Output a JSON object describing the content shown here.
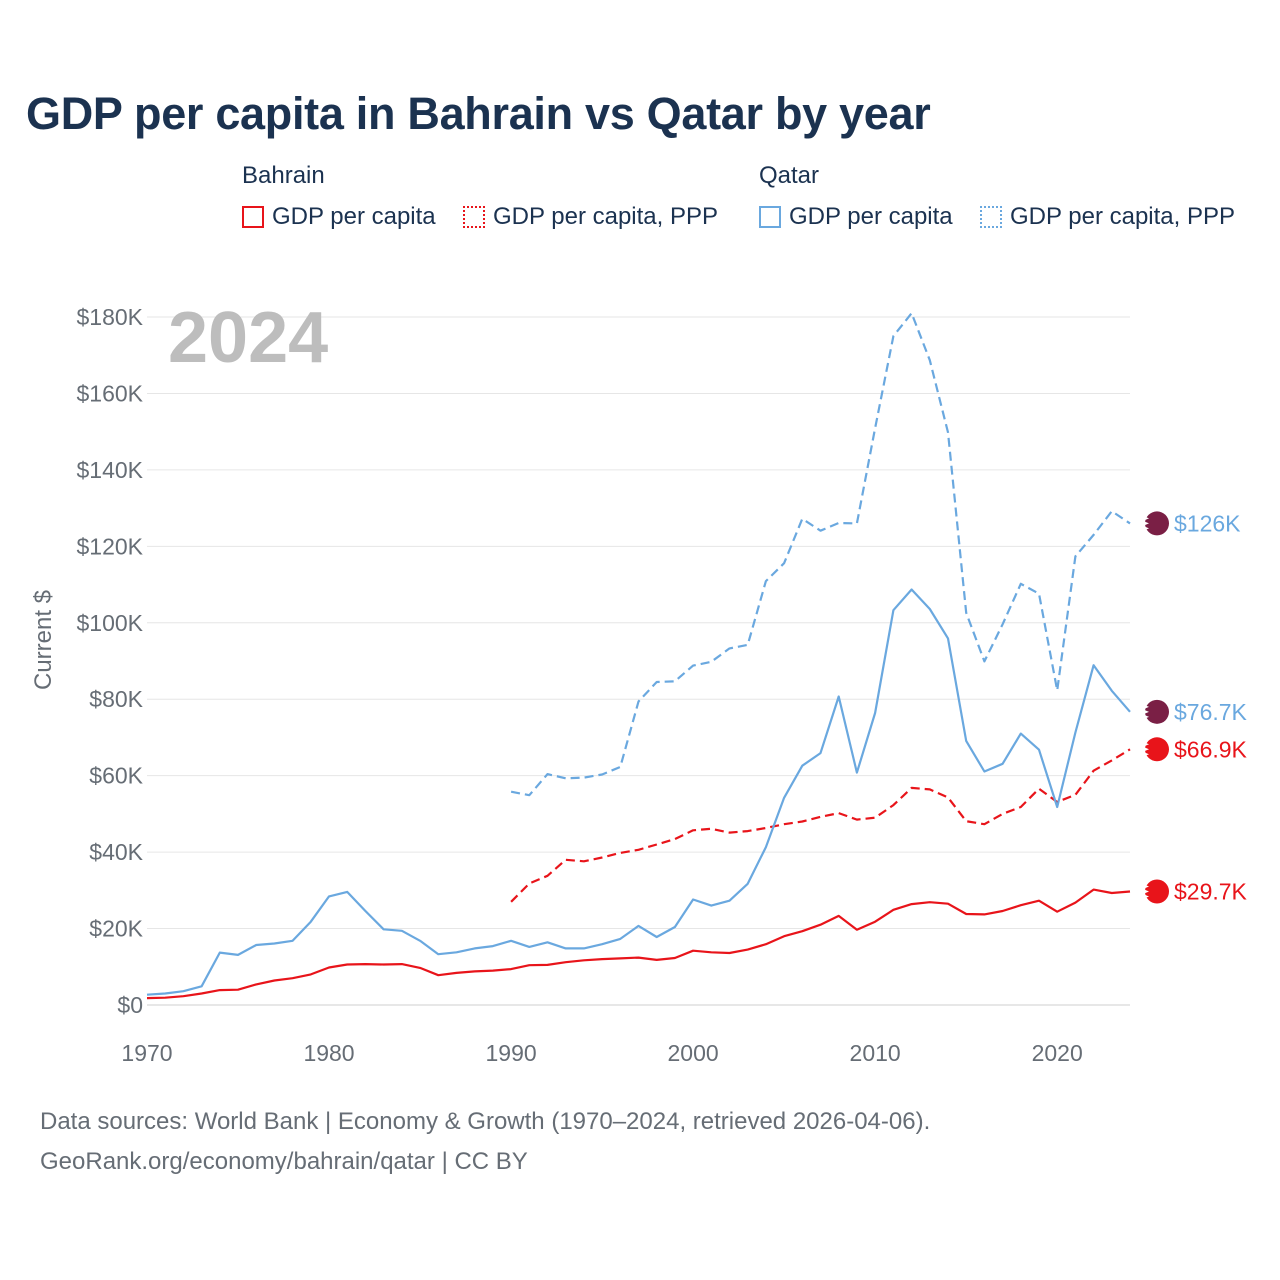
{
  "title": "GDP per capita in Bahrain vs Qatar by year",
  "legend": {
    "groups": [
      {
        "country": "Bahrain",
        "items": [
          "GDP per capita",
          "GDP per capita, PPP"
        ]
      },
      {
        "country": "Qatar",
        "items": [
          "GDP per capita",
          "GDP per capita, PPP"
        ]
      }
    ]
  },
  "source": {
    "line1": "Data sources: World Bank | Economy & Growth (1970–2024, retrieved 2026-04-06).",
    "line2": "GeoRank.org/economy/bahrain/qatar | CC BY"
  },
  "colors": {
    "bahrain": "#e8141a",
    "qatar": "#6aa8df",
    "qatar_flag": "#7a1f45",
    "bahrain_flag": "#e8141a",
    "grid": "#e6e6e6",
    "axis_text": "#666d75",
    "year_watermark": "#bdbdbd"
  },
  "chart_data": {
    "type": "line",
    "year_label": "2024",
    "ylabel": "Current $",
    "xlim": [
      1970,
      2024
    ],
    "ylim": [
      0,
      180000
    ],
    "x_ticks": [
      1970,
      1980,
      1990,
      2000,
      2010,
      2020
    ],
    "y_ticks": [
      {
        "value": 0,
        "label": "$0"
      },
      {
        "value": 20000,
        "label": "$20K"
      },
      {
        "value": 40000,
        "label": "$40K"
      },
      {
        "value": 60000,
        "label": "$60K"
      },
      {
        "value": 80000,
        "label": "$80K"
      },
      {
        "value": 100000,
        "label": "$100K"
      },
      {
        "value": 120000,
        "label": "$120K"
      },
      {
        "value": 140000,
        "label": "$140K"
      },
      {
        "value": 160000,
        "label": "$160K"
      },
      {
        "value": 180000,
        "label": "$180K"
      }
    ],
    "series": [
      {
        "name": "Bahrain GDP per capita",
        "country": "bahrain",
        "dash": false,
        "end_label": "$29.7K",
        "end_value": 29700,
        "x": [
          1970,
          1971,
          1972,
          1973,
          1974,
          1975,
          1976,
          1977,
          1978,
          1979,
          1980,
          1981,
          1982,
          1983,
          1984,
          1985,
          1986,
          1987,
          1988,
          1989,
          1990,
          1991,
          1992,
          1993,
          1994,
          1995,
          1996,
          1997,
          1998,
          1999,
          2000,
          2001,
          2002,
          2003,
          2004,
          2005,
          2006,
          2007,
          2008,
          2009,
          2010,
          2011,
          2012,
          2013,
          2014,
          2015,
          2016,
          2017,
          2018,
          2019,
          2020,
          2021,
          2022,
          2023,
          2024
        ],
        "values": [
          1800,
          1900,
          2300,
          3000,
          3900,
          4000,
          5400,
          6400,
          7000,
          8000,
          9800,
          10600,
          10700,
          10600,
          10700,
          9700,
          7800,
          8400,
          8800,
          9000,
          9400,
          10400,
          10500,
          11200,
          11700,
          12000,
          12200,
          12400,
          11800,
          12300,
          14200,
          13800,
          13600,
          14500,
          15900,
          18000,
          19300,
          21000,
          23300,
          19700,
          21800,
          24900,
          26400,
          26900,
          26500,
          23800,
          23700,
          24600,
          26100,
          27300,
          24400,
          26800,
          30200,
          29300,
          29700
        ]
      },
      {
        "name": "Bahrain GDP per capita, PPP",
        "country": "bahrain",
        "dash": true,
        "end_label": "$66.9K",
        "end_value": 66900,
        "x": [
          1990,
          1991,
          1992,
          1993,
          1994,
          1995,
          1996,
          1997,
          1998,
          1999,
          2000,
          2001,
          2002,
          2003,
          2004,
          2005,
          2006,
          2007,
          2008,
          2009,
          2010,
          2011,
          2012,
          2013,
          2014,
          2015,
          2016,
          2017,
          2018,
          2019,
          2020,
          2021,
          2022,
          2023,
          2024
        ],
        "values": [
          27000,
          31800,
          33800,
          38000,
          37600,
          38600,
          39800,
          40600,
          42000,
          43400,
          45700,
          46100,
          45100,
          45500,
          46300,
          47300,
          48000,
          49200,
          50200,
          48500,
          49000,
          52300,
          56800,
          56400,
          54300,
          48100,
          47300,
          50000,
          51800,
          56600,
          53100,
          55000,
          61300,
          64000,
          66900
        ]
      },
      {
        "name": "Qatar GDP per capita",
        "country": "qatar",
        "dash": false,
        "end_label": "$76.7K",
        "end_value": 76700,
        "x": [
          1970,
          1971,
          1972,
          1973,
          1974,
          1975,
          1976,
          1977,
          1978,
          1979,
          1980,
          1981,
          1982,
          1983,
          1984,
          1985,
          1986,
          1987,
          1988,
          1989,
          1990,
          1991,
          1992,
          1993,
          1994,
          1995,
          1996,
          1997,
          1998,
          1999,
          2000,
          2001,
          2002,
          2003,
          2004,
          2005,
          2006,
          2007,
          2008,
          2009,
          2010,
          2011,
          2012,
          2013,
          2014,
          2015,
          2016,
          2017,
          2018,
          2019,
          2020,
          2021,
          2022,
          2023,
          2024
        ],
        "values": [
          2700,
          3000,
          3600,
          4900,
          13700,
          13100,
          15700,
          16100,
          16800,
          21800,
          28400,
          29600,
          24600,
          19800,
          19400,
          16800,
          13300,
          13800,
          14800,
          15400,
          16800,
          15200,
          16400,
          14800,
          14800,
          15900,
          17300,
          20700,
          17800,
          20400,
          27600,
          26000,
          27300,
          31700,
          41300,
          54200,
          62600,
          65900,
          80700,
          60800,
          76400,
          103300,
          108700,
          103600,
          95900,
          69100,
          61100,
          63100,
          71000,
          66800,
          51800,
          71300,
          88900,
          82200,
          76700
        ]
      },
      {
        "name": "Qatar GDP per capita, PPP",
        "country": "qatar",
        "dash": true,
        "end_label": "$126K",
        "end_value": 126000,
        "x": [
          1990,
          1991,
          1992,
          1993,
          1994,
          1995,
          1996,
          1997,
          1998,
          1999,
          2000,
          2001,
          2002,
          2003,
          2004,
          2005,
          2006,
          2007,
          2008,
          2009,
          2010,
          2011,
          2012,
          2013,
          2014,
          2015,
          2016,
          2017,
          2018,
          2019,
          2020,
          2021,
          2022,
          2023,
          2024
        ],
        "values": [
          55800,
          54900,
          60400,
          59300,
          59500,
          60300,
          62300,
          79400,
          84500,
          84700,
          88800,
          89800,
          93300,
          94200,
          110900,
          115600,
          127200,
          124100,
          126100,
          126000,
          150900,
          175000,
          181000,
          168700,
          149800,
          102600,
          89900,
          99600,
          110200,
          107600,
          82300,
          117400,
          123000,
          129200,
          126000
        ]
      }
    ]
  }
}
